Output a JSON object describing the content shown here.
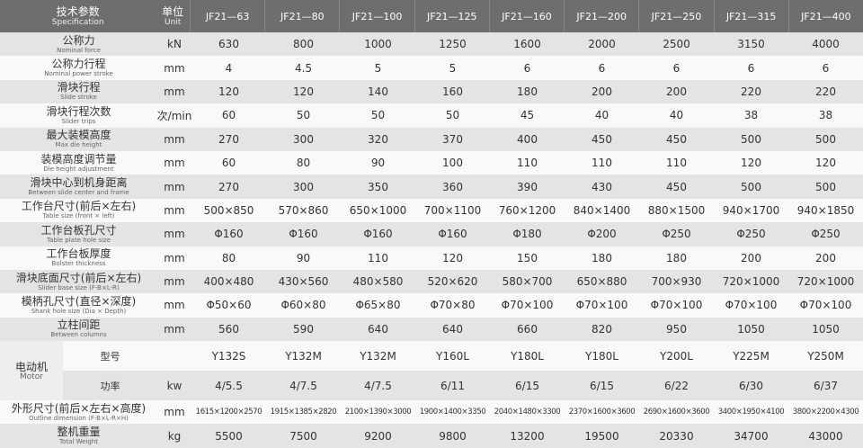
{
  "header": {
    "spec_zh": "技术参数",
    "spec_en": "Specification",
    "unit_zh": "单位",
    "unit_en": "Unit",
    "models": [
      "JF21—63",
      "JF21—80",
      "JF21—100",
      "JF21—125",
      "JF21—160",
      "JF21—200",
      "JF21—250",
      "JF21—315",
      "JF21—400"
    ]
  },
  "rows": [
    {
      "name_zh": "公称力",
      "name_en": "Nominal force",
      "unit": "kN",
      "values": [
        "630",
        "800",
        "1000",
        "1250",
        "1600",
        "2000",
        "2500",
        "3150",
        "4000"
      ]
    },
    {
      "name_zh": "公称力行程",
      "name_en": "Nominal power stroke",
      "unit": "mm",
      "values": [
        "4",
        "4.5",
        "5",
        "5",
        "6",
        "6",
        "6",
        "6",
        "6"
      ]
    },
    {
      "name_zh": "滑块行程",
      "name_en": "Slide stroke",
      "unit": "mm",
      "values": [
        "120",
        "120",
        "140",
        "160",
        "180",
        "200",
        "200",
        "220",
        "220"
      ]
    },
    {
      "name_zh": "滑块行程次数",
      "name_en": "Slider trips",
      "unit": "次/min",
      "values": [
        "60",
        "50",
        "50",
        "50",
        "45",
        "40",
        "40",
        "38",
        "38"
      ]
    },
    {
      "name_zh": "最大装模高度",
      "name_en": "Max die height",
      "unit": "mm",
      "values": [
        "270",
        "300",
        "320",
        "370",
        "400",
        "450",
        "450",
        "500",
        "500"
      ]
    },
    {
      "name_zh": "装模高度调节量",
      "name_en": "Die height adjustment",
      "unit": "mm",
      "values": [
        "60",
        "80",
        "90",
        "100",
        "110",
        "110",
        "110",
        "120",
        "120"
      ]
    },
    {
      "name_zh": "滑块中心到机身距离",
      "name_en": "Between slide center and frame",
      "unit": "mm",
      "values": [
        "270",
        "300",
        "350",
        "360",
        "390",
        "430",
        "450",
        "500",
        "500"
      ]
    },
    {
      "name_zh": "工作台尺寸(前后×左右)",
      "name_en": "Table size (front × left)",
      "unit": "mm",
      "values": [
        "500×850",
        "570×860",
        "650×1000",
        "700×1100",
        "760×1200",
        "840×1400",
        "880×1500",
        "940×1700",
        "940×1850"
      ]
    },
    {
      "name_zh": "工作台板孔尺寸",
      "name_en": "Table plate hole size",
      "unit": "mm",
      "values": [
        "Φ160",
        "Φ160",
        "Φ160",
        "Φ160",
        "Φ180",
        "Φ200",
        "Φ250",
        "Φ250",
        "Φ250"
      ]
    },
    {
      "name_zh": "工作台板厚度",
      "name_en": "Bolster thickness",
      "unit": "mm",
      "values": [
        "80",
        "90",
        "110",
        "120",
        "150",
        "180",
        "180",
        "200",
        "200"
      ]
    },
    {
      "name_zh": "滑块底面尺寸(前后×左右)",
      "name_en": "Slider base size (F-B×L-R)",
      "unit": "mm",
      "values": [
        "400×480",
        "430×560",
        "480×580",
        "520×620",
        "580×700",
        "650×880",
        "700×930",
        "720×1000",
        "720×1000"
      ]
    },
    {
      "name_zh": "模柄孔尺寸(直径×深度)",
      "name_en": "Shank hole size (Dia × Depth)",
      "unit": "mm",
      "values": [
        "Φ50×60",
        "Φ60×80",
        "Φ65×80",
        "Φ70×80",
        "Φ70×100",
        "Φ70×100",
        "Φ70×100",
        "Φ70×100",
        "Φ70×100"
      ]
    },
    {
      "name_zh": "立柱间距",
      "name_en": "Between columns",
      "unit": "mm",
      "values": [
        "560",
        "590",
        "640",
        "640",
        "660",
        "820",
        "950",
        "1050",
        "1050"
      ]
    }
  ],
  "motor": {
    "name_zh": "电动机",
    "name_en": "Motor",
    "rows": [
      {
        "label": "型号",
        "values": [
          "Y132S",
          "Y132M",
          "Y132M",
          "Y160L",
          "Y180L",
          "Y180L",
          "Y200L",
          "Y225M",
          "Y250M"
        ]
      },
      {
        "label": "功率",
        "unit": "kw",
        "values": [
          "4/5.5",
          "4/7.5",
          "4/7.5",
          "6/11",
          "6/15",
          "6/15",
          "6/22",
          "6/30",
          "6/37"
        ]
      }
    ]
  },
  "tail_rows": [
    {
      "name_zh": "外形尺寸(前后×左右×高度)",
      "name_en": "Outline dimension (F-B×L-R×H)",
      "unit": "mm",
      "values": [
        "1615×1200×2570",
        "1915×1385×2820",
        "2100×1390×3000",
        "1900×1400×3350",
        "2040×1480×3300",
        "2370×1600×3600",
        "2690×1600×3600",
        "3400×1950×4100",
        "3800×2200×4300"
      ]
    },
    {
      "name_zh": "整机重量",
      "name_en": "Total Weight",
      "unit": "kg",
      "values": [
        "5500",
        "7500",
        "9200",
        "9800",
        "13200",
        "19500",
        "20330",
        "34700",
        "43000"
      ]
    }
  ]
}
